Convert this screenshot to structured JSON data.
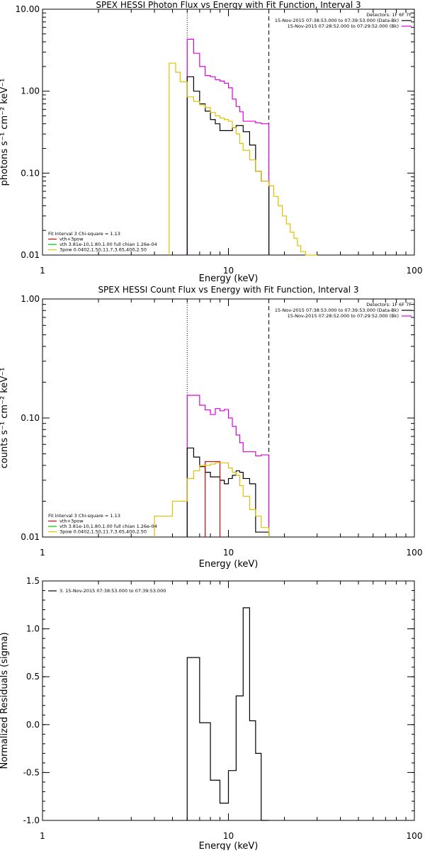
{
  "chart_data": [
    {
      "type": "line",
      "title": "SPEX HESSI Photon Flux vs Energy with Fit Function, Interval 3",
      "xlabel": "Energy (keV)",
      "ylabel": "photons s⁻¹ cm⁻² keV⁻¹",
      "xscale": "log",
      "yscale": "log",
      "xlim": [
        1,
        100
      ],
      "ylim": [
        0.01,
        10
      ],
      "xticks": [
        "1",
        "10",
        "100"
      ],
      "yticks": [
        "10.00",
        "1.00",
        "0.10",
        "0.01"
      ],
      "grid": false,
      "vlines": [
        {
          "x": 6.0,
          "style": "dotted"
        },
        {
          "x": 16.5,
          "style": "dashed"
        }
      ],
      "legend_topright": {
        "lines": [
          "Detectors: 1F 6F 7F",
          "15-Nov-2015 07:38:53.000 to 07:39:53.000 (Data-Bk)",
          "15-Nov-2015 07:28:52.000 to 07:29:52.000 (Bk)"
        ],
        "colors": [
          "#000000",
          "#000000",
          "#e000e0"
        ]
      },
      "legend_bottomleft": {
        "lines": [
          "Fit Interval 3   Chi-square = 1.13",
          "vth+3pow",
          "vth 3.81e-10,1.80,1.00  full chian 1.26e-04",
          "3pow 0.0402,1.50,11.7,3.65,400,2.50"
        ],
        "colors": [
          "#000000",
          "#e00000",
          "#00c000",
          "#e0c000"
        ]
      },
      "series": [
        {
          "color": "#e000e0",
          "edges": [
            6.0,
            6.5,
            7.0,
            7.5,
            8.0,
            8.5,
            9.0,
            9.5,
            10.0,
            10.5,
            11.0,
            11.5,
            12.0,
            13.0,
            14.0,
            15.0,
            16.5
          ],
          "values": [
            4.3,
            2.9,
            2.0,
            1.55,
            1.5,
            1.38,
            1.33,
            1.25,
            1.1,
            0.8,
            0.65,
            0.56,
            0.43,
            0.43,
            0.41,
            0.4
          ]
        },
        {
          "color": "#000000",
          "edges": [
            6.0,
            6.5,
            7.0,
            7.5,
            8.0,
            8.5,
            9.0,
            9.5,
            10.0,
            10.5,
            11.0,
            11.5,
            12.0,
            13.0,
            14.0,
            15.0,
            16.5
          ],
          "values": [
            1.5,
            1.0,
            0.7,
            0.57,
            0.45,
            0.4,
            0.33,
            0.33,
            0.33,
            0.36,
            0.38,
            0.38,
            0.32,
            0.22,
            0.105,
            0.08
          ]
        },
        {
          "color": "#e0c000",
          "edges": [
            4.8,
            5.2,
            5.5,
            6.0,
            6.5,
            7.0,
            7.5,
            8.0,
            8.5,
            9.0,
            9.5,
            10.0,
            10.5,
            11.0,
            11.5,
            12.0,
            13.0,
            14.0,
            15.0,
            16.5,
            17.5,
            18.5,
            19.5,
            20.5,
            21.5,
            22.5,
            23.5,
            24.5,
            26.0,
            28.0,
            30.0
          ],
          "values": [
            2.2,
            1.7,
            1.3,
            0.85,
            0.75,
            0.68,
            0.63,
            0.55,
            0.5,
            0.47,
            0.45,
            0.43,
            0.36,
            0.3,
            0.23,
            0.19,
            0.145,
            0.105,
            0.08,
            0.07,
            0.052,
            0.04,
            0.03,
            0.024,
            0.019,
            0.016,
            0.013,
            0.011,
            0.0095,
            0.008
          ]
        }
      ]
    },
    {
      "type": "line",
      "title": "SPEX HESSI Count Flux vs Energy with Fit Function, Interval 3",
      "xlabel": "Energy (keV)",
      "ylabel": "counts s⁻¹ cm⁻² keV⁻¹",
      "xscale": "log",
      "yscale": "log",
      "xlim": [
        1,
        100
      ],
      "ylim": [
        0.01,
        1
      ],
      "xticks": [
        "1",
        "10",
        "100"
      ],
      "yticks": [
        "1.00",
        "0.10",
        "0.01"
      ],
      "grid": false,
      "vlines": [
        {
          "x": 6.0,
          "style": "dotted"
        },
        {
          "x": 16.5,
          "style": "dashed"
        }
      ],
      "legend_topright": {
        "lines": [
          "Detectors: 1F 6F 7F",
          "15-Nov-2015 07:38:53.000 to 07:39:53.000 (Data-Bk)",
          "15-Nov-2015 07:28:52.000 to 07:29:52.000 (Bk)"
        ],
        "colors": [
          "#000000",
          "#000000",
          "#e000e0"
        ]
      },
      "legend_bottomleft": {
        "lines": [
          "Fit Interval 3   Chi-square = 1.13",
          "vth+3pow",
          "vth 3.81e-10,1.80,1.00  full chian 1.26e-04",
          "3pow 0.0402,1.50,11.7,3.65,400,2.50"
        ],
        "colors": [
          "#000000",
          "#e00000",
          "#00c000",
          "#e0c000"
        ]
      },
      "series": [
        {
          "color": "#e000e0",
          "edges": [
            6.0,
            7.0,
            7.5,
            8.0,
            8.5,
            9.0,
            9.5,
            10.0,
            10.5,
            11.0,
            11.5,
            12.0,
            13.0,
            14.0,
            15.0,
            16.5
          ],
          "values": [
            0.155,
            0.128,
            0.117,
            0.107,
            0.12,
            0.115,
            0.118,
            0.1,
            0.085,
            0.072,
            0.062,
            0.052,
            0.052,
            0.048,
            0.049
          ]
        },
        {
          "color": "#000000",
          "edges": [
            6.0,
            6.5,
            7.0,
            7.5,
            8.0,
            8.5,
            9.0,
            9.5,
            10.0,
            10.5,
            11.0,
            11.5,
            12.0,
            13.0,
            14.0,
            15.0,
            16.5
          ],
          "values": [
            0.056,
            0.047,
            0.039,
            0.035,
            0.032,
            0.032,
            0.03,
            0.028,
            0.031,
            0.033,
            0.036,
            0.035,
            0.031,
            0.028,
            0.011,
            0.011
          ]
        },
        {
          "color": "#e00000",
          "edges": [
            7.5,
            8.0,
            9.0
          ],
          "values": [
            0.043,
            0.043
          ]
        },
        {
          "color": "#e0c000",
          "edges": [
            4.0,
            5.0,
            6.0,
            6.5,
            7.0,
            7.5,
            8.0,
            8.5,
            9.0,
            9.5,
            10.0,
            10.5,
            11.0,
            11.5,
            12.0,
            13.0,
            14.0,
            15.0,
            16.5
          ],
          "values": [
            0.015,
            0.02,
            0.031,
            0.036,
            0.04,
            0.04,
            0.041,
            0.042,
            0.042,
            0.042,
            0.038,
            0.035,
            0.033,
            0.027,
            0.022,
            0.017,
            0.015,
            0.012
          ]
        }
      ]
    },
    {
      "type": "line",
      "title": "",
      "xlabel": "Energy (keV)",
      "ylabel": "Normalized Residuals (sigma)",
      "xscale": "log",
      "xlim": [
        1,
        100
      ],
      "ylim": [
        -1.0,
        1.5
      ],
      "xticks": [
        "1",
        "10",
        "100"
      ],
      "yticks": [
        "1.5",
        "1.0",
        "0.5",
        "0.0",
        "-0.5",
        "-1.0"
      ],
      "grid": false,
      "legend_topleft": {
        "lines": [
          "3. 15-Nov-2015 07:38:53.000 to 07:39:53.000"
        ],
        "colors": [
          "#000000"
        ]
      },
      "series": [
        {
          "color": "#000000",
          "edges": [
            6.0,
            7.0,
            8.0,
            9.0,
            10.0,
            11.0,
            12.0,
            13.0,
            14.0,
            15.0,
            16.5
          ],
          "values": [
            0.7,
            0.02,
            -0.58,
            -0.82,
            -0.48,
            0.3,
            1.22,
            0.04,
            -0.3,
            -1.0
          ]
        }
      ]
    }
  ]
}
